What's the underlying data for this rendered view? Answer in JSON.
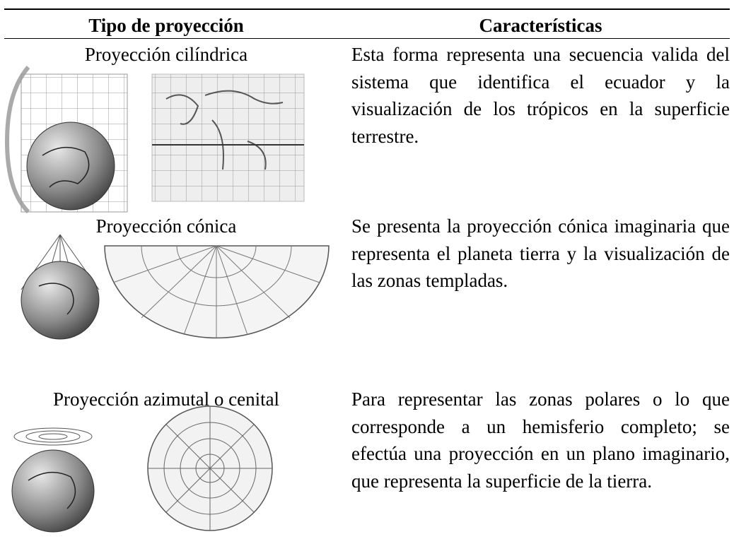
{
  "table": {
    "header": [
      "Tipo de proyección",
      "Características"
    ],
    "rows": [
      [
        "Proyección cilíndrica",
        "Esta forma representa una secuencia valida del sistema que identifica el ecuador y la visualización de los trópicos en la superficie terrestre."
      ],
      [
        "Proyección cónica",
        "Se presenta la proyección cónica imaginaria que representa el planeta tierra y la visualización de las zonas templadas."
      ],
      [
        "Proyección azimutal o cenital",
        "Para representar las zonas polares o lo que corresponde a un hemisferio completo; se efectúa una proyección en un plano imaginario, que representa la superficie de la tierra."
      ]
    ]
  }
}
